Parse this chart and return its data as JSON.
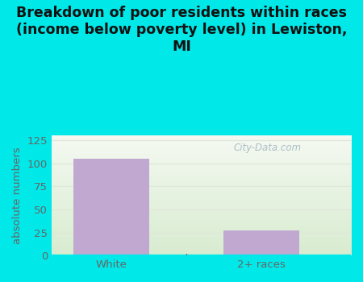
{
  "categories": [
    "White",
    "2+ races"
  ],
  "values": [
    105,
    27
  ],
  "bar_color": "#c0a8d0",
  "title": "Breakdown of poor residents within races\n(income below poverty level) in Lewiston,\nMI",
  "ylabel": "absolute numbers",
  "ylim": [
    0,
    130
  ],
  "yticks": [
    0,
    25,
    50,
    75,
    100,
    125
  ],
  "title_bg_color": "#00e8e8",
  "outer_bg_color": "#00e8e8",
  "grid_color": "#e0e8d8",
  "title_fontsize": 12.5,
  "ylabel_fontsize": 9.5,
  "tick_fontsize": 9.5,
  "watermark_text": "City-Data.com",
  "title_color": "#111111",
  "axis_color": "#666666",
  "plot_bg_top": "#f5f9f2",
  "plot_bg_bottom": "#d8ecd0"
}
